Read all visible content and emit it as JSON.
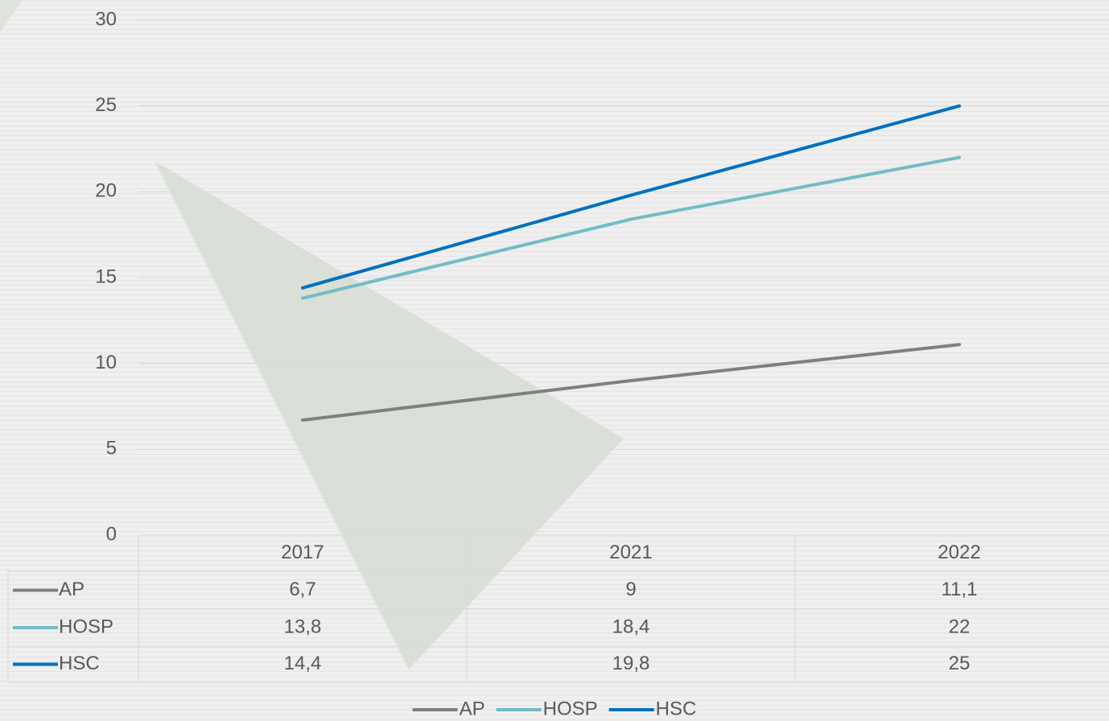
{
  "chart_data": {
    "type": "line",
    "categories": [
      "2017",
      "2021",
      "2022"
    ],
    "series": [
      {
        "name": "AP",
        "color": "#7f7f7f",
        "values": [
          6.7,
          9,
          11.1
        ],
        "value_labels": [
          "6,7",
          "9",
          "11,1"
        ]
      },
      {
        "name": "HOSP",
        "color": "#72bcc4",
        "values": [
          13.8,
          18.4,
          22
        ],
        "value_labels": [
          "13,8",
          "18,4",
          "22"
        ]
      },
      {
        "name": "HSC",
        "color": "#0070c0",
        "values": [
          14.4,
          19.8,
          25
        ],
        "value_labels": [
          "14,4",
          "19,8",
          "25"
        ]
      }
    ],
    "ylim": [
      0,
      30
    ],
    "yticks": [
      0,
      5,
      10,
      15,
      20,
      25,
      30
    ],
    "grid": true
  }
}
